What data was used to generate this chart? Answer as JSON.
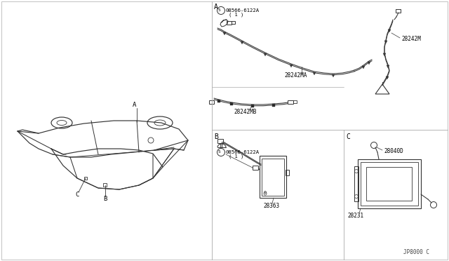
{
  "bg_color": "#ffffff",
  "line_color": "#333333",
  "text_color": "#000000",
  "border_color": "#999999",
  "diagram_parts": {
    "part_08566_6122A": "08566-6122A",
    "part_qty_1": "( 1 )",
    "part_28242MA": "28242MA",
    "part_28242MB": "28242MB",
    "part_28242M": "28242M",
    "part_28363": "28363",
    "part_28040D": "28040D",
    "part_28231": "28231",
    "footer": "JP8000 C"
  }
}
